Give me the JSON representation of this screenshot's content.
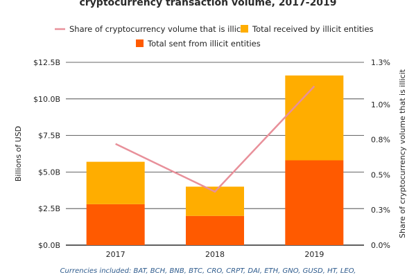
{
  "chart_data": {
    "type": "bar",
    "title": "cryptocurrency transaction volume, 2017-2019",
    "categories": [
      "2017",
      "2018",
      "2019"
    ],
    "series": [
      {
        "name": "Total sent from illicit entities",
        "kind": "stacked-bar",
        "axis": "left",
        "color": "#ff5a00",
        "values": [
          2.8,
          2.0,
          5.8
        ]
      },
      {
        "name": "Total received by illicit entities",
        "kind": "stacked-bar",
        "axis": "left",
        "color": "#ffad00",
        "values": [
          2.9,
          2.0,
          5.8
        ]
      },
      {
        "name": "Share of cryptocurrency volume that is illicit",
        "kind": "line",
        "axis": "right",
        "color": "#e8909a",
        "values": [
          0.0072,
          0.0038,
          0.0113
        ]
      }
    ],
    "ylabel": "Billions of USD",
    "y2label": "Share of cryptocurrency volume that is illicit",
    "ylim": [
      0,
      12.5
    ],
    "y2lim": [
      0,
      0.013
    ],
    "yticks": [
      0,
      2.5,
      5,
      7.5,
      10,
      12.5
    ],
    "ytick_labels": [
      "$0.0B",
      "$2.5B",
      "$5.0B",
      "$7.5B",
      "$10.0B",
      "$12.5B"
    ],
    "y2ticks": [
      0,
      0.0025,
      0.005,
      0.0075,
      0.01,
      0.013
    ],
    "y2tick_labels": [
      "0.0%",
      "0.3%",
      "0.5%",
      "0.8%",
      "1.0%",
      "1.3%"
    ],
    "grid": true,
    "legend_placement": "top"
  },
  "footnote": "Currencies included: BAT, BCH, BNB, BTC, CRO, CRPT, DAI, ETH, GNO, GUSD, HT, LEO,"
}
